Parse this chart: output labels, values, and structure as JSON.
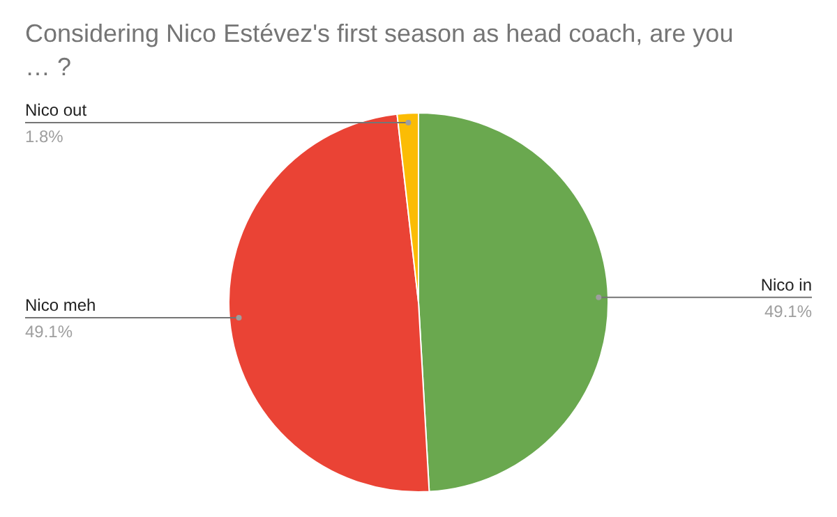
{
  "chart_data": {
    "type": "pie",
    "title": "Considering Nico Estévez's first season as head coach, are you … ?",
    "categories": [
      "Nico in",
      "Nico meh",
      "Nico out"
    ],
    "values": [
      49.1,
      49.1,
      1.8
    ],
    "value_labels": [
      "49.1%",
      "49.1%",
      "1.8%"
    ],
    "colors": [
      "#6aa84f",
      "#ea4335",
      "#fbbc04"
    ]
  }
}
